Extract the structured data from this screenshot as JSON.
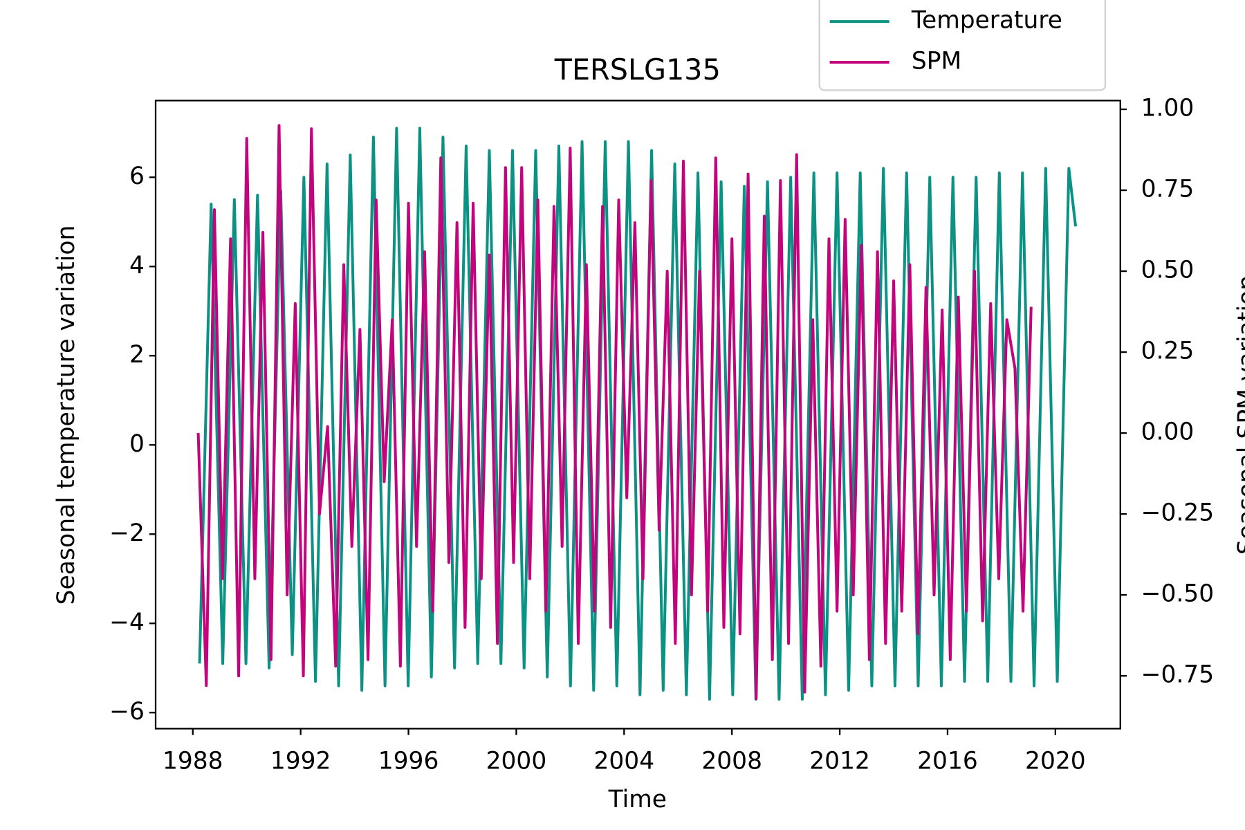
{
  "chart_data": {
    "type": "line",
    "title": "TERSLG135",
    "x_label": "Time",
    "y_label": "Seasonal temperature variation",
    "y2_label": "Seasonal SPM variation",
    "xlim": [
      1986.62,
      2022.41
    ],
    "xticks": [
      1988,
      1992,
      1996,
      2000,
      2004,
      2008,
      2012,
      2016,
      2020
    ],
    "ylim": [
      -6.36,
      7.72
    ],
    "yticks": [
      {
        "value": -6,
        "label": "−6"
      },
      {
        "value": -4,
        "label": "−4"
      },
      {
        "value": -2,
        "label": "−2"
      },
      0,
      2,
      4,
      6
    ],
    "y2lim": [
      -0.913,
      1.027
    ],
    "y2ticks": [
      {
        "value": -0.75,
        "label": "−0.75"
      },
      {
        "value": -0.5,
        "label": "−0.50"
      },
      {
        "value": -0.25,
        "label": "−0.25"
      },
      {
        "value": 0,
        "label": "0.00"
      },
      {
        "value": 0.25,
        "label": "0.25"
      },
      {
        "value": 0.5,
        "label": "0.50"
      },
      {
        "value": 0.75,
        "label": "0.75"
      },
      {
        "value": 1,
        "label": "1.00"
      }
    ],
    "grid": false,
    "legend": "upper right",
    "series": [
      {
        "name": "Temperature",
        "color": "#0c9284",
        "x": [
          1988.25,
          1988.68,
          1989.11,
          1989.54,
          1989.97,
          1990.4,
          1990.83,
          1991.26,
          1991.69,
          1992.12,
          1992.55,
          1992.98,
          1993.41,
          1993.84,
          1994.27,
          1994.7,
          1995.13,
          1995.56,
          1995.99,
          1996.42,
          1996.85,
          1997.28,
          1997.71,
          1998.14,
          1998.57,
          1999.0,
          1999.43,
          1999.86,
          2000.29,
          2000.72,
          2001.15,
          2001.58,
          2002.01,
          2002.44,
          2002.87,
          2003.3,
          2003.73,
          2004.16,
          2004.59,
          2005.02,
          2005.45,
          2005.88,
          2006.31,
          2006.74,
          2007.17,
          2007.6,
          2008.03,
          2008.46,
          2008.89,
          2009.32,
          2009.75,
          2010.18,
          2010.61,
          2011.04,
          2011.47,
          2011.9,
          2012.33,
          2012.76,
          2013.19,
          2013.62,
          2014.05,
          2014.48,
          2014.91,
          2015.34,
          2015.77,
          2016.2,
          2016.63,
          2017.06,
          2017.49,
          2017.92,
          2018.35,
          2018.78,
          2019.21,
          2019.64,
          2020.07,
          2020.5,
          2020.75
        ],
        "values": [
          -4.9,
          5.4,
          -4.9,
          5.5,
          -4.9,
          5.6,
          -5.0,
          5.7,
          -4.7,
          6.0,
          -5.3,
          6.3,
          -5.4,
          6.5,
          -5.5,
          6.9,
          -5.4,
          7.1,
          -5.4,
          7.1,
          -5.2,
          6.9,
          -5.0,
          6.7,
          -4.9,
          6.6,
          -4.9,
          6.6,
          -5.0,
          6.6,
          -5.2,
          6.7,
          -5.4,
          6.8,
          -5.5,
          6.8,
          -5.4,
          6.8,
          -5.6,
          6.6,
          -5.5,
          6.3,
          -5.6,
          6.1,
          -5.7,
          5.9,
          -5.6,
          5.8,
          -5.7,
          5.9,
          -5.7,
          6.0,
          -5.7,
          6.1,
          -5.6,
          6.1,
          -5.5,
          6.1,
          -5.4,
          6.2,
          -5.4,
          6.1,
          -5.4,
          6.0,
          -5.4,
          6.0,
          -5.3,
          6.0,
          -5.3,
          6.1,
          -5.3,
          6.1,
          -5.4,
          6.2,
          -5.3,
          6.2,
          4.9
        ]
      },
      {
        "name": "SPM",
        "color": "#c2057c",
        "axis": "y2",
        "x": [
          1988.2,
          1988.5,
          1988.8,
          1989.1,
          1989.4,
          1989.7,
          1990.0,
          1990.3,
          1990.6,
          1990.9,
          1991.2,
          1991.5,
          1991.8,
          1992.1,
          1992.4,
          1992.7,
          1993.0,
          1993.3,
          1993.6,
          1993.9,
          1994.2,
          1994.5,
          1994.8,
          1995.1,
          1995.4,
          1995.7,
          1996.0,
          1996.3,
          1996.6,
          1996.9,
          1997.2,
          1997.5,
          1997.8,
          1998.1,
          1998.4,
          1998.7,
          1999.0,
          1999.3,
          1999.6,
          1999.9,
          2000.2,
          2000.5,
          2000.8,
          2001.1,
          2001.4,
          2001.7,
          2002.0,
          2002.3,
          2002.6,
          2002.9,
          2003.2,
          2003.5,
          2003.8,
          2004.1,
          2004.4,
          2004.7,
          2005.0,
          2005.3,
          2005.6,
          2005.9,
          2006.2,
          2006.5,
          2006.8,
          2007.1,
          2007.4,
          2007.7,
          2008.0,
          2008.3,
          2008.6,
          2008.9,
          2009.2,
          2009.5,
          2009.8,
          2010.1,
          2010.4,
          2010.7,
          2011.0,
          2011.3,
          2011.6,
          2011.9,
          2012.2,
          2012.5,
          2012.8,
          2013.1,
          2013.4,
          2013.7,
          2014.0,
          2014.3,
          2014.6,
          2014.9,
          2015.2,
          2015.5,
          2015.8,
          2016.1,
          2016.4,
          2016.7,
          2017.0,
          2017.3,
          2017.6,
          2017.9,
          2018.2,
          2018.5,
          2018.8,
          2019.1
        ],
        "values": [
          0.0,
          -0.78,
          0.69,
          -0.45,
          0.6,
          -0.75,
          0.91,
          -0.45,
          0.62,
          -0.7,
          0.95,
          -0.5,
          0.4,
          -0.75,
          0.94,
          -0.25,
          0.02,
          -0.72,
          0.52,
          -0.35,
          0.32,
          -0.7,
          0.72,
          -0.15,
          0.35,
          -0.72,
          0.71,
          -0.35,
          0.56,
          -0.55,
          0.85,
          -0.4,
          0.65,
          -0.6,
          0.71,
          -0.45,
          0.55,
          -0.65,
          0.82,
          -0.4,
          0.82,
          -0.45,
          0.72,
          -0.55,
          0.7,
          -0.35,
          0.88,
          -0.65,
          0.52,
          -0.55,
          0.7,
          -0.6,
          0.72,
          -0.2,
          0.65,
          -0.45,
          0.78,
          -0.3,
          0.5,
          -0.65,
          0.84,
          -0.5,
          0.5,
          -0.55,
          0.85,
          -0.6,
          0.6,
          -0.62,
          0.8,
          -0.82,
          0.67,
          -0.7,
          0.78,
          -0.65,
          0.86,
          -0.8,
          0.35,
          -0.72,
          0.6,
          -0.55,
          0.66,
          -0.5,
          0.58,
          -0.7,
          0.56,
          -0.65,
          0.47,
          -0.55,
          0.52,
          -0.62,
          0.45,
          -0.5,
          0.38,
          -0.7,
          0.42,
          -0.55,
          0.5,
          -0.58,
          0.4,
          -0.45,
          0.35,
          0.2,
          -0.55,
          0.39
        ]
      }
    ]
  }
}
